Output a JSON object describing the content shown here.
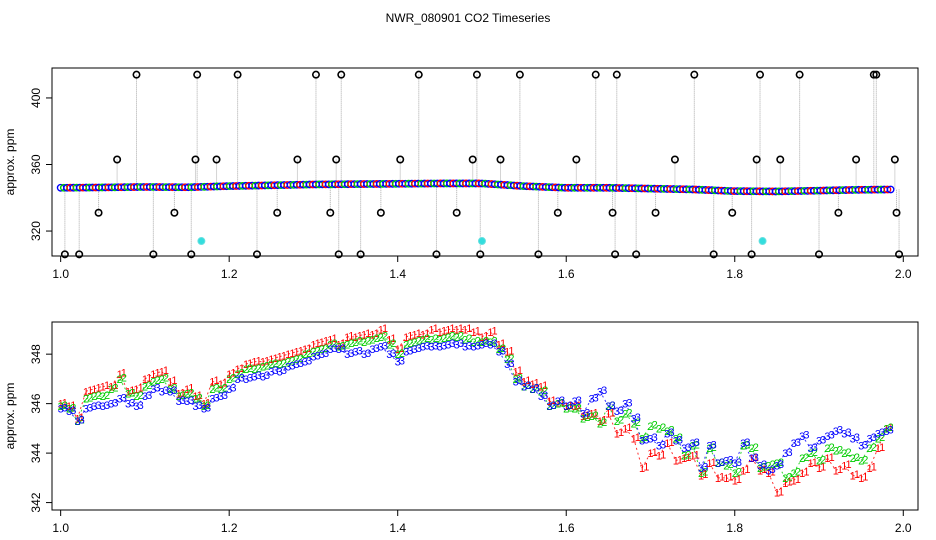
{
  "title": "NWR_080901  CO2 Timeseries",
  "colors": {
    "series_1": "#ff0000",
    "series_2": "#00cc00",
    "series_3": "#0000ff",
    "outlier": "#000000",
    "flagged": "#33dddd",
    "connector": "#aaaaaa"
  },
  "chart_data": [
    {
      "type": "scatter",
      "ylabel": "approx. ppm",
      "xlim": [
        1.0,
        2.0
      ],
      "ylim": [
        305,
        418
      ],
      "xticks": [
        "1.0",
        "1.2",
        "1.4",
        "1.6",
        "1.8",
        "2.0"
      ],
      "yticks": [
        "320",
        "360",
        "400"
      ],
      "grid": false,
      "baseline_series": {
        "name": "",
        "x": [
          1.0,
          1.05,
          1.1,
          1.15,
          1.2,
          1.25,
          1.3,
          1.35,
          1.4,
          1.45,
          1.5,
          1.55,
          1.6,
          1.65,
          1.7,
          1.75,
          1.8,
          1.85,
          1.9,
          1.95,
          1.99
        ],
        "y": [
          346,
          346.2,
          346.5,
          346.3,
          347,
          347.5,
          348,
          348.2,
          348.4,
          348.6,
          348.6,
          347,
          346,
          346,
          345.5,
          345,
          344,
          343.8,
          344.3,
          344.8,
          345
        ]
      },
      "outliers": {
        "x": [
          1.005,
          1.022,
          1.045,
          1.067,
          1.09,
          1.11,
          1.135,
          1.155,
          1.16,
          1.162,
          1.185,
          1.21,
          1.233,
          1.257,
          1.281,
          1.303,
          1.32,
          1.327,
          1.33,
          1.333,
          1.356,
          1.38,
          1.403,
          1.425,
          1.446,
          1.47,
          1.489,
          1.494,
          1.498,
          1.522,
          1.545,
          1.567,
          1.59,
          1.612,
          1.635,
          1.655,
          1.658,
          1.66,
          1.683,
          1.706,
          1.729,
          1.752,
          1.775,
          1.797,
          1.82,
          1.826,
          1.83,
          1.854,
          1.877,
          1.9,
          1.923,
          1.944,
          1.965,
          1.968,
          1.99,
          1.992,
          1.995
        ],
        "y": [
          306,
          306,
          331,
          363,
          414,
          306,
          331,
          306,
          363,
          414,
          363,
          414,
          306,
          331,
          363,
          414,
          331,
          363,
          306,
          414,
          306,
          331,
          363,
          414,
          306,
          331,
          363,
          414,
          306,
          363,
          414,
          306,
          331,
          363,
          414,
          331,
          306,
          414,
          306,
          331,
          363,
          414,
          306,
          331,
          306,
          363,
          414,
          363,
          414,
          306,
          331,
          363,
          414,
          414,
          363,
          331,
          306
        ]
      },
      "flagged": {
        "x": [
          1.167,
          1.5,
          1.833
        ],
        "y": [
          314,
          314,
          314
        ]
      }
    },
    {
      "type": "scatter",
      "ylabel": "approx. ppm",
      "xlim": [
        1.0,
        2.0
      ],
      "ylim": [
        341.7,
        349.3
      ],
      "xticks": [
        "1.0",
        "1.2",
        "1.4",
        "1.6",
        "1.8",
        "2.0"
      ],
      "yticks": [
        "342",
        "344",
        "346",
        "348"
      ],
      "grid": false,
      "series": [
        {
          "name": "1",
          "x": [
            1.0,
            1.01,
            1.02,
            1.03,
            1.04,
            1.05,
            1.06,
            1.07,
            1.08,
            1.09,
            1.1,
            1.11,
            1.12,
            1.13,
            1.14,
            1.15,
            1.16,
            1.17,
            1.18,
            1.19,
            1.2,
            1.21,
            1.22,
            1.23,
            1.24,
            1.25,
            1.26,
            1.27,
            1.28,
            1.29,
            1.3,
            1.31,
            1.32,
            1.33,
            1.34,
            1.35,
            1.36,
            1.37,
            1.38,
            1.39,
            1.4,
            1.41,
            1.42,
            1.43,
            1.44,
            1.45,
            1.46,
            1.47,
            1.48,
            1.49,
            1.5,
            1.51,
            1.52,
            1.53,
            1.54,
            1.55,
            1.56,
            1.57,
            1.58,
            1.59,
            1.6,
            1.61,
            1.62,
            1.63,
            1.64,
            1.65,
            1.66,
            1.67,
            1.68,
            1.69,
            1.7,
            1.71,
            1.72,
            1.73,
            1.74,
            1.75,
            1.76,
            1.77,
            1.78,
            1.79,
            1.8,
            1.81,
            1.82,
            1.83,
            1.84,
            1.85,
            1.86,
            1.87,
            1.88,
            1.89,
            1.9,
            1.91,
            1.92,
            1.93,
            1.94,
            1.95,
            1.96,
            1.97,
            1.98
          ],
          "y": [
            346.0,
            345.9,
            345.4,
            346.5,
            346.6,
            346.7,
            346.7,
            347.2,
            346.5,
            346.6,
            347.0,
            347.2,
            347.3,
            346.9,
            346.4,
            346.6,
            346.3,
            346.0,
            346.9,
            346.8,
            347.2,
            347.4,
            347.6,
            347.7,
            347.7,
            347.8,
            347.9,
            348.0,
            348.1,
            348.2,
            348.4,
            348.5,
            348.6,
            348.4,
            348.7,
            348.7,
            348.8,
            348.8,
            349.0,
            348.6,
            348.2,
            348.7,
            348.8,
            348.8,
            349.0,
            348.9,
            349.0,
            349.0,
            349.0,
            348.9,
            348.7,
            348.9,
            348.4,
            348.1,
            347.3,
            346.9,
            346.8,
            346.7,
            346.1,
            346.0,
            345.9,
            345.9,
            345.5,
            345.6,
            345.3,
            345.6,
            344.8,
            345.0,
            344.6,
            343.4,
            344.0,
            343.9,
            344.4,
            343.7,
            343.8,
            343.9,
            343.1,
            343.6,
            343.0,
            343.0,
            342.9,
            343.3,
            343.8,
            343.3,
            343.2,
            342.4,
            342.8,
            342.9,
            343.2,
            343.6,
            343.4,
            343.8,
            343.3,
            343.5,
            343.1,
            343.0,
            343.4,
            344.2,
            345.0
          ]
        },
        {
          "name": "2",
          "x": [
            1.0,
            1.01,
            1.02,
            1.03,
            1.04,
            1.05,
            1.06,
            1.07,
            1.08,
            1.09,
            1.1,
            1.11,
            1.12,
            1.13,
            1.14,
            1.15,
            1.16,
            1.17,
            1.18,
            1.19,
            1.2,
            1.21,
            1.22,
            1.23,
            1.24,
            1.25,
            1.26,
            1.27,
            1.28,
            1.29,
            1.3,
            1.31,
            1.32,
            1.33,
            1.34,
            1.35,
            1.36,
            1.37,
            1.38,
            1.39,
            1.4,
            1.41,
            1.42,
            1.43,
            1.44,
            1.45,
            1.46,
            1.47,
            1.48,
            1.49,
            1.5,
            1.51,
            1.52,
            1.53,
            1.54,
            1.55,
            1.56,
            1.57,
            1.58,
            1.59,
            1.6,
            1.61,
            1.62,
            1.63,
            1.64,
            1.65,
            1.66,
            1.67,
            1.68,
            1.69,
            1.7,
            1.71,
            1.72,
            1.73,
            1.74,
            1.75,
            1.76,
            1.77,
            1.78,
            1.79,
            1.8,
            1.81,
            1.82,
            1.83,
            1.84,
            1.85,
            1.86,
            1.87,
            1.88,
            1.89,
            1.9,
            1.91,
            1.92,
            1.93,
            1.94,
            1.95,
            1.96,
            1.97,
            1.98
          ],
          "y": [
            345.9,
            345.8,
            345.3,
            346.2,
            346.3,
            346.3,
            346.6,
            347.0,
            346.4,
            346.3,
            346.7,
            346.9,
            347.0,
            346.6,
            346.3,
            346.4,
            346.2,
            345.9,
            346.6,
            346.6,
            347.0,
            347.2,
            347.4,
            347.4,
            347.5,
            347.6,
            347.6,
            347.7,
            347.8,
            348.0,
            348.1,
            348.2,
            348.4,
            348.3,
            348.4,
            348.5,
            348.5,
            348.6,
            348.7,
            348.4,
            348.0,
            348.4,
            348.5,
            348.6,
            348.6,
            348.6,
            348.7,
            348.7,
            348.6,
            348.5,
            348.5,
            348.5,
            348.2,
            347.8,
            347.0,
            346.7,
            346.6,
            346.5,
            345.9,
            346.0,
            345.8,
            345.8,
            345.4,
            345.5,
            345.2,
            345.9,
            345.3,
            345.6,
            345.2,
            344.6,
            345.1,
            345.0,
            344.9,
            344.6,
            343.9,
            344.3,
            343.2,
            344.2,
            343.6,
            343.5,
            343.2,
            344.3,
            344.2,
            343.4,
            343.5,
            343.6,
            343.0,
            343.2,
            343.8,
            344.0,
            343.7,
            344.2,
            344.1,
            344.0,
            343.8,
            343.7,
            344.2,
            344.6,
            345.0
          ]
        },
        {
          "name": "3",
          "x": [
            1.0,
            1.01,
            1.02,
            1.03,
            1.04,
            1.05,
            1.06,
            1.07,
            1.08,
            1.09,
            1.1,
            1.11,
            1.12,
            1.13,
            1.14,
            1.15,
            1.16,
            1.17,
            1.18,
            1.19,
            1.2,
            1.21,
            1.22,
            1.23,
            1.24,
            1.25,
            1.26,
            1.27,
            1.28,
            1.29,
            1.3,
            1.31,
            1.32,
            1.33,
            1.34,
            1.35,
            1.36,
            1.37,
            1.38,
            1.39,
            1.4,
            1.41,
            1.42,
            1.43,
            1.44,
            1.45,
            1.46,
            1.47,
            1.48,
            1.49,
            1.5,
            1.51,
            1.52,
            1.53,
            1.54,
            1.55,
            1.56,
            1.57,
            1.58,
            1.59,
            1.6,
            1.61,
            1.62,
            1.63,
            1.64,
            1.65,
            1.66,
            1.67,
            1.68,
            1.69,
            1.7,
            1.71,
            1.72,
            1.73,
            1.74,
            1.75,
            1.76,
            1.77,
            1.78,
            1.79,
            1.8,
            1.81,
            1.82,
            1.83,
            1.84,
            1.85,
            1.86,
            1.87,
            1.88,
            1.89,
            1.9,
            1.91,
            1.92,
            1.93,
            1.94,
            1.95,
            1.96,
            1.97,
            1.98
          ],
          "y": [
            345.8,
            345.7,
            345.3,
            345.8,
            345.9,
            345.9,
            346.0,
            346.2,
            346.0,
            345.9,
            346.3,
            346.6,
            346.5,
            346.5,
            346.1,
            346.1,
            345.9,
            345.8,
            346.2,
            346.3,
            346.6,
            347.0,
            347.0,
            347.1,
            347.1,
            347.3,
            347.3,
            347.5,
            347.6,
            347.7,
            347.9,
            348.0,
            348.2,
            348.2,
            348.0,
            348.1,
            348.0,
            348.2,
            348.3,
            348.0,
            347.7,
            348.1,
            348.2,
            348.3,
            348.3,
            348.3,
            348.4,
            348.4,
            348.3,
            348.3,
            348.4,
            348.4,
            348.1,
            347.6,
            346.9,
            346.7,
            346.6,
            346.3,
            345.9,
            346.1,
            345.9,
            346.1,
            345.6,
            346.2,
            346.5,
            345.9,
            345.7,
            346.0,
            345.4,
            344.5,
            344.6,
            344.3,
            344.8,
            344.5,
            344.2,
            344.4,
            343.4,
            344.3,
            343.6,
            343.7,
            343.6,
            344.4,
            343.8,
            343.5,
            343.3,
            343.5,
            344.0,
            344.4,
            344.7,
            344.2,
            344.5,
            344.7,
            344.9,
            344.8,
            344.6,
            344.3,
            344.6,
            344.8,
            344.9
          ]
        }
      ]
    }
  ]
}
